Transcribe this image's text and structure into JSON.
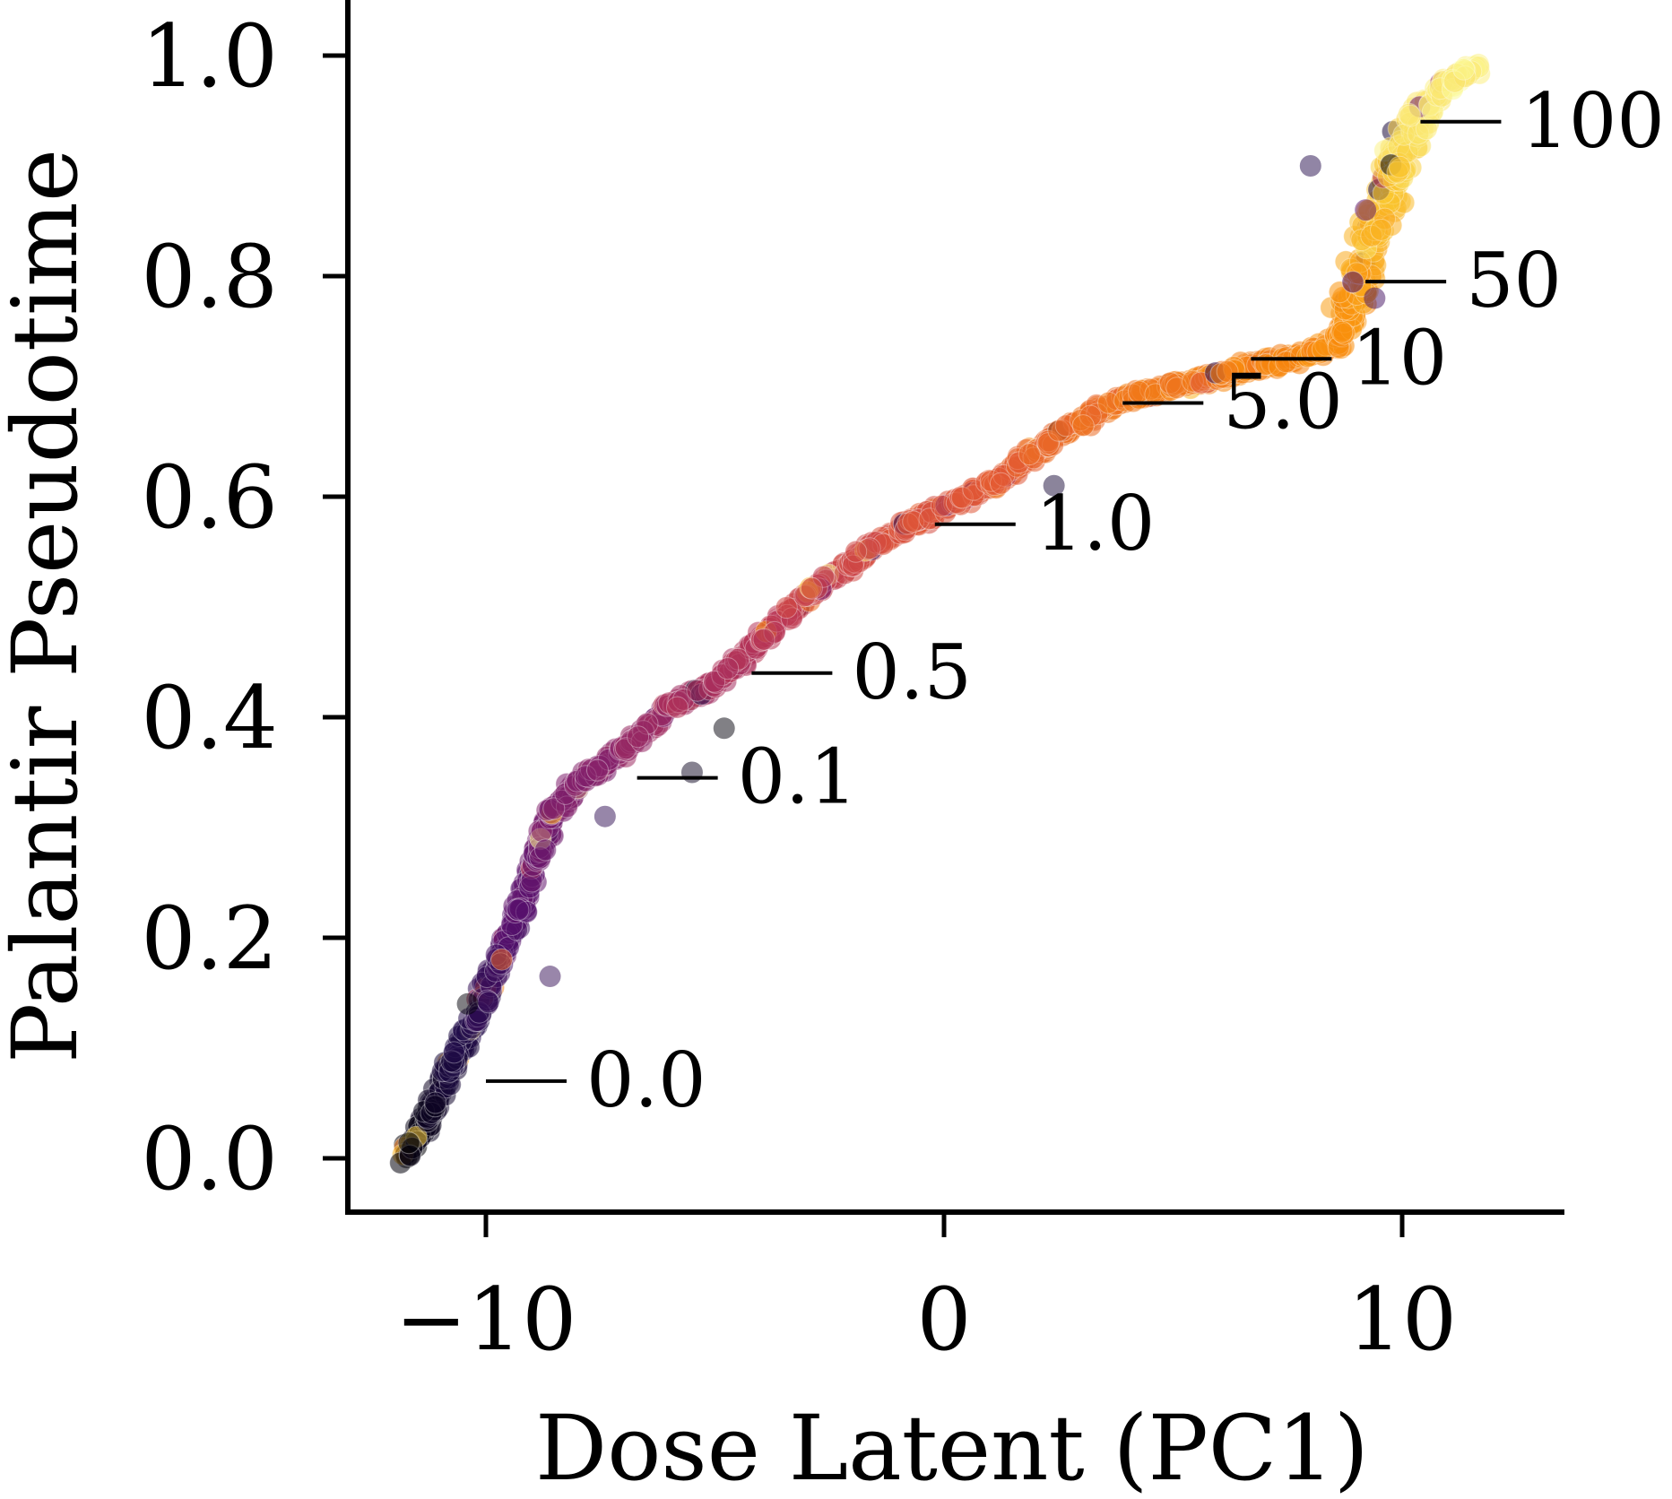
{
  "chart_data": {
    "type": "scatter",
    "title": "",
    "xlabel": "Dose Latent (PC1)",
    "ylabel": "Palantir Pseudotime",
    "xlim": [
      -13,
      13.5
    ],
    "ylim": [
      -0.1,
      1.05
    ],
    "x_ticks": [
      -10,
      0,
      10
    ],
    "x_tick_labels": [
      "−10",
      "0",
      "10"
    ],
    "y_ticks": [
      0.0,
      0.2,
      0.4,
      0.6,
      0.8,
      1.0
    ],
    "y_tick_labels": [
      "0.0",
      "0.2",
      "0.4",
      "0.6",
      "0.8",
      "1.0"
    ],
    "grid": false,
    "legend": "none",
    "colormap": "inferno",
    "point_alpha": 0.55,
    "trajectory": [
      [
        -11.8,
        0.0
      ],
      [
        -11.2,
        0.04
      ],
      [
        -10.8,
        0.08
      ],
      [
        -10.3,
        0.12
      ],
      [
        -9.8,
        0.17
      ],
      [
        -9.3,
        0.22
      ],
      [
        -8.9,
        0.27
      ],
      [
        -8.6,
        0.31
      ],
      [
        -8.0,
        0.34
      ],
      [
        -7.0,
        0.37
      ],
      [
        -6.0,
        0.41
      ],
      [
        -5.0,
        0.43
      ],
      [
        -4.0,
        0.47
      ],
      [
        -3.0,
        0.51
      ],
      [
        -2.0,
        0.54
      ],
      [
        -1.0,
        0.57
      ],
      [
        0.0,
        0.59
      ],
      [
        1.0,
        0.61
      ],
      [
        2.0,
        0.64
      ],
      [
        3.0,
        0.67
      ],
      [
        4.0,
        0.69
      ],
      [
        5.0,
        0.7
      ],
      [
        6.0,
        0.71
      ],
      [
        7.0,
        0.72
      ],
      [
        8.0,
        0.73
      ],
      [
        8.6,
        0.74
      ],
      [
        9.0,
        0.78
      ],
      [
        9.4,
        0.84
      ],
      [
        9.8,
        0.89
      ],
      [
        10.2,
        0.93
      ],
      [
        10.8,
        0.97
      ],
      [
        11.6,
        0.99
      ]
    ],
    "dose_annotations": [
      {
        "label": "0.0",
        "x": -10.0,
        "y": 0.07
      },
      {
        "label": "0.1",
        "x": -6.7,
        "y": 0.345
      },
      {
        "label": "0.5",
        "x": -4.2,
        "y": 0.44
      },
      {
        "label": "1.0",
        "x": -0.2,
        "y": 0.575
      },
      {
        "label": "5.0",
        "x": 3.9,
        "y": 0.685
      },
      {
        "label": "10",
        "x": 6.7,
        "y": 0.725
      },
      {
        "label": "50",
        "x": 9.2,
        "y": 0.795
      },
      {
        "label": "100",
        "x": 10.4,
        "y": 0.94
      }
    ],
    "outliers": [
      [
        8.0,
        0.9
      ],
      [
        9.4,
        0.78
      ],
      [
        -5.5,
        0.35
      ],
      [
        -8.6,
        0.165
      ],
      [
        -10.4,
        0.14
      ],
      [
        -7.4,
        0.31
      ],
      [
        -4.8,
        0.39
      ],
      [
        2.4,
        0.61
      ],
      [
        9.2,
        0.86
      ]
    ]
  }
}
